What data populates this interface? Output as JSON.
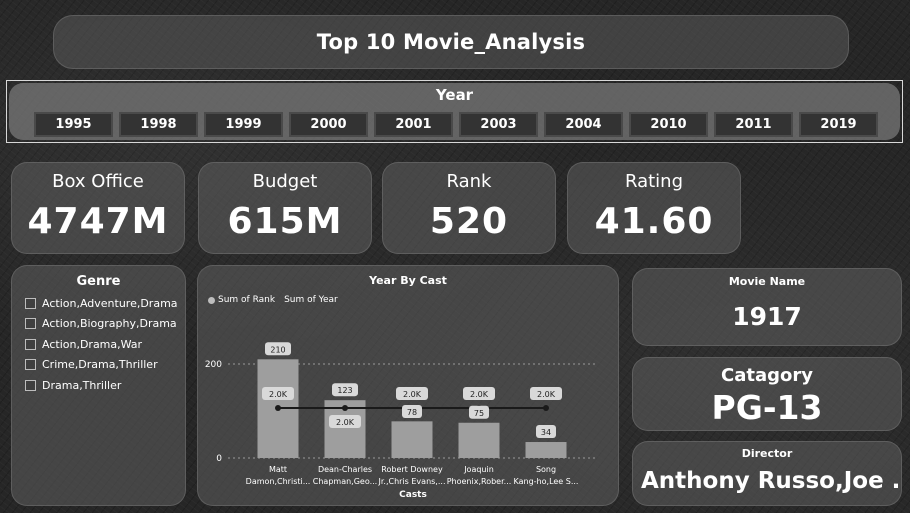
{
  "title": "Top 10 Movie_Analysis",
  "year_slicer": {
    "title": "Year",
    "years": [
      "1995",
      "1998",
      "1999",
      "2000",
      "2001",
      "2003",
      "2004",
      "2010",
      "2011",
      "2019"
    ]
  },
  "kpis": [
    {
      "label": "Box Office",
      "value": "4747M"
    },
    {
      "label": "Budget",
      "value": "615M"
    },
    {
      "label": "Rank",
      "value": "520"
    },
    {
      "label": "Rating",
      "value": "41.60"
    }
  ],
  "genre": {
    "title": "Genre",
    "items": [
      "Action,Adventure,Drama",
      "Action,Biography,Drama",
      "Action,Drama,War",
      "Crime,Drama,Thriller",
      "Drama,Thriller"
    ]
  },
  "chart_data": {
    "type": "bar",
    "title": "Year By Cast",
    "xlabel": "Casts",
    "ylabel": "",
    "categories": [
      [
        "Matt",
        "Damon,Christi..."
      ],
      [
        "Dean-Charles",
        "Chapman,Geo..."
      ],
      [
        "Robert Downey",
        "Jr.,Chris Evans,..."
      ],
      [
        "Joaquin",
        "Phoenix,Rober..."
      ],
      [
        "Song",
        "Kang-ho,Lee S..."
      ]
    ],
    "yticks": [
      "200",
      "0"
    ],
    "ylim": [
      0,
      260
    ],
    "series": [
      {
        "name": "Sum of Rank",
        "type": "bar",
        "values": [
          210,
          123,
          78,
          75,
          34
        ],
        "labels": [
          "210",
          "123",
          "78",
          "75",
          "34"
        ]
      },
      {
        "name": "Sum of Year",
        "type": "line",
        "values": [
          2000,
          2000,
          2000,
          2000,
          2000
        ],
        "labels": [
          "2.0K",
          "2.0K",
          "2.0K",
          "2.0K",
          "2.0K"
        ]
      }
    ],
    "legend_position": "top-left",
    "bar_color": "#9e9e9e",
    "line_color": "#1a1a1a"
  },
  "movie": {
    "label": "Movie Name",
    "value": "1917"
  },
  "category": {
    "label": "Catagory",
    "value": "PG-13"
  },
  "director": {
    "label": "Director",
    "value": "Anthony Russo,Joe ..."
  }
}
